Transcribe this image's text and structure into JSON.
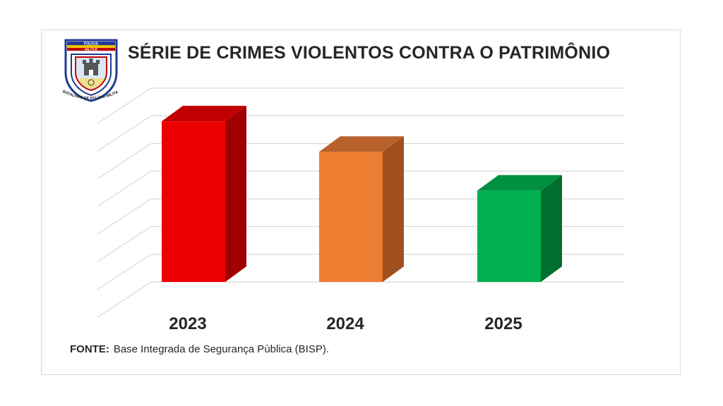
{
  "header": {
    "title": "SÉRIE DE CRIMES VIOLENTOS CONTRA O PATRIMÔNIO"
  },
  "logo": {
    "top_text_line1": "POLÍCIA",
    "top_text_line2": "MILITAR",
    "arc_text": "16-10  BATALHÃO DE POLÍCIA MILITAR  2015"
  },
  "footer": {
    "source_label": "FONTE:",
    "source_text": "Base Integrada de Segurança Pùblica (BISP)."
  },
  "chart_data": {
    "type": "bar",
    "categories": [
      "2023",
      "2024",
      "2025"
    ],
    "values": [
      58,
      47,
      33
    ],
    "colors": [
      "#ee0000",
      "#ed7d31",
      "#00b050"
    ],
    "side_colors": [
      "#a00000",
      "#a0501d",
      "#006f30"
    ],
    "top_colors": [
      "#c00000",
      "#b8612a",
      "#00903f"
    ],
    "title": "SÉRIE DE CRIMES VIOLENTOS CONTRA O PATRIMÔNIO",
    "xlabel": "",
    "ylabel": "",
    "ylim": [
      0,
      70
    ],
    "grid": true,
    "three_d": true
  }
}
